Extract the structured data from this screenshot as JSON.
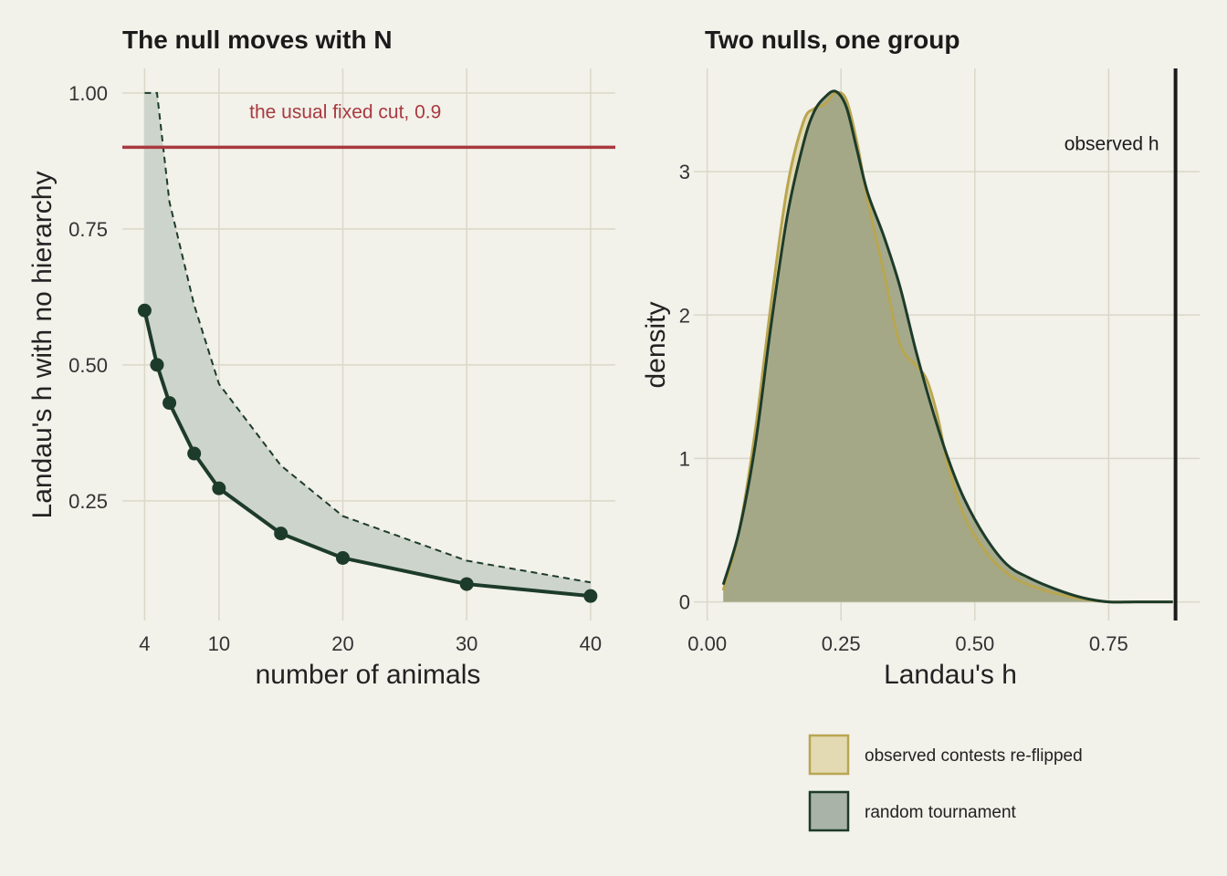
{
  "chart_data": [
    {
      "type": "line",
      "title": "The null moves with N",
      "xlabel": "number of animals",
      "ylabel": "Landau's h with no hierarchy",
      "xlim": [
        2.2,
        42
      ],
      "ylim": [
        0.03,
        1.045
      ],
      "xticks": [
        4,
        10,
        20,
        30,
        40
      ],
      "yticks": [
        0.25,
        0.5,
        0.75,
        1.0
      ],
      "ytick_labels": [
        "0.25",
        "0.50",
        "0.75",
        "1.00"
      ],
      "grid": true,
      "x": [
        4,
        5,
        6,
        8,
        10,
        15,
        20,
        30,
        40
      ],
      "series": [
        {
          "values": [
            0.6,
            0.5,
            0.43,
            0.337,
            0.273,
            0.19,
            0.145,
            0.097,
            0.075
          ]
        }
      ],
      "upper_band": {
        "x": [
          4,
          5,
          6,
          8,
          10,
          15,
          20,
          30,
          40
        ],
        "values": [
          1.0,
          1.0,
          0.8,
          0.61,
          0.465,
          0.315,
          0.222,
          0.14,
          0.1
        ]
      },
      "reference_line": {
        "y": 0.9,
        "label": "the usual fixed cut, 0.9",
        "color": "#a8393f"
      }
    },
    {
      "type": "area",
      "title": "Two nulls, one group",
      "xlabel": "Landau's h",
      "ylabel": "density",
      "xlim": [
        -0.025,
        0.92
      ],
      "ylim": [
        -0.13,
        3.72
      ],
      "xticks": [
        0,
        0.25,
        0.5,
        0.75
      ],
      "xtick_labels": [
        "0.00",
        "0.25",
        "0.50",
        "0.75"
      ],
      "yticks": [
        0,
        1,
        2,
        3
      ],
      "ytick_labels": [
        "0",
        "1",
        "2",
        "3"
      ],
      "grid": true,
      "legend_position": "bottom-right",
      "series": [
        {
          "name": "observed contests re-flipped",
          "color": "#b8a650",
          "x": [
            0.03,
            0.06,
            0.09,
            0.12,
            0.15,
            0.18,
            0.2,
            0.22,
            0.24,
            0.26,
            0.28,
            0.3,
            0.33,
            0.36,
            0.39,
            0.41,
            0.43,
            0.45,
            0.48,
            0.52,
            0.56,
            0.6,
            0.65,
            0.7,
            0.75,
            0.8,
            0.87
          ],
          "values": [
            0.08,
            0.5,
            1.2,
            2.1,
            2.9,
            3.35,
            3.44,
            3.47,
            3.55,
            3.5,
            3.2,
            2.8,
            2.3,
            1.8,
            1.65,
            1.55,
            1.3,
            0.95,
            0.6,
            0.35,
            0.2,
            0.12,
            0.06,
            0.02,
            0.0,
            0.0,
            0.0
          ]
        },
        {
          "name": "random tournament",
          "color": "#1d3b2a",
          "x": [
            0.03,
            0.06,
            0.09,
            0.12,
            0.15,
            0.18,
            0.2,
            0.22,
            0.24,
            0.26,
            0.28,
            0.3,
            0.33,
            0.36,
            0.39,
            0.42,
            0.45,
            0.48,
            0.52,
            0.56,
            0.6,
            0.65,
            0.7,
            0.75,
            0.8,
            0.87
          ],
          "values": [
            0.12,
            0.5,
            1.1,
            1.95,
            2.7,
            3.2,
            3.42,
            3.52,
            3.56,
            3.45,
            3.15,
            2.85,
            2.55,
            2.2,
            1.75,
            1.35,
            1.0,
            0.72,
            0.45,
            0.26,
            0.17,
            0.09,
            0.03,
            0.0,
            0.0,
            0.0
          ]
        }
      ],
      "vertical_line": {
        "x": 0.875,
        "label": "observed h",
        "color": "#1b1b1b"
      }
    }
  ],
  "colors": {
    "background": "#f2f1ea",
    "grid": "#d9d8c8",
    "accent_dark": "#1d3b2a",
    "band_fill": "#cdd4cb",
    "reference_red": "#a8393f",
    "gold": "#b8a650",
    "gold_fill": "#e3dab3",
    "green_fill": "#a9b3a7",
    "overlap_fill": "#9ea483"
  }
}
